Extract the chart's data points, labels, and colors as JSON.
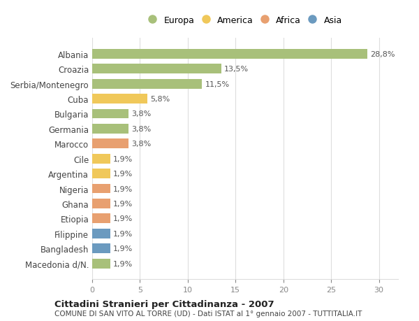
{
  "countries": [
    "Albania",
    "Croazia",
    "Serbia/Montenegro",
    "Cuba",
    "Bulgaria",
    "Germania",
    "Marocco",
    "Cile",
    "Argentina",
    "Nigeria",
    "Ghana",
    "Etiopia",
    "Filippine",
    "Bangladesh",
    "Macedonia d/N."
  ],
  "values": [
    28.8,
    13.5,
    11.5,
    5.8,
    3.8,
    3.8,
    3.8,
    1.9,
    1.9,
    1.9,
    1.9,
    1.9,
    1.9,
    1.9,
    1.9
  ],
  "regions": [
    "Europa",
    "Europa",
    "Europa",
    "America",
    "Europa",
    "Europa",
    "Africa",
    "America",
    "America",
    "Africa",
    "Africa",
    "Africa",
    "Asia",
    "Asia",
    "Europa"
  ],
  "region_colors": {
    "Europa": "#a8c07a",
    "America": "#f0c85a",
    "Africa": "#e8a070",
    "Asia": "#6b9abf"
  },
  "legend_labels": [
    "Europa",
    "America",
    "Africa",
    "Asia"
  ],
  "legend_colors": [
    "#a8c07a",
    "#f0c85a",
    "#e8a070",
    "#6b9abf"
  ],
  "title": "Cittadini Stranieri per Cittadinanza - 2007",
  "subtitle": "COMUNE DI SAN VITO AL TORRE (UD) - Dati ISTAT al 1° gennaio 2007 - TUTTITALIA.IT",
  "xlim": [
    0,
    32
  ],
  "xticks": [
    0,
    5,
    10,
    15,
    20,
    25,
    30
  ],
  "background_color": "#ffffff",
  "grid_color": "#dddddd",
  "bar_height": 0.65
}
